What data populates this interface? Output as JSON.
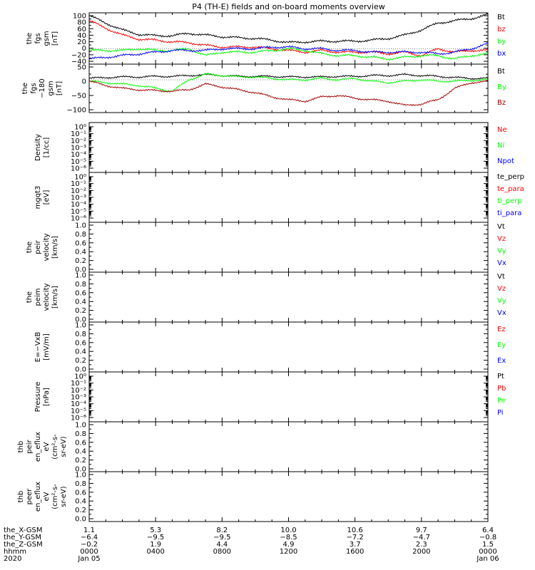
{
  "title": "P4 (TH-E) fields and on-board moments overview",
  "colors": {
    "black": "#000000",
    "red": "#ff0000",
    "green": "#00ff00",
    "blue": "#0000ff",
    "darkred": "#a00000"
  },
  "panels": [
    {
      "id": "fgs",
      "ylabel": [
        "the",
        "fgs",
        "gsm",
        "[nT]"
      ],
      "scale": "linear",
      "yticks": [
        "100",
        "80",
        "60",
        "40",
        "20",
        "0",
        "−20",
        "−40"
      ],
      "ylim": [
        -45,
        105
      ],
      "legend": [
        {
          "text": "Bt",
          "color": "black"
        },
        {
          "text": "bz",
          "color": "red"
        },
        {
          "text": "by",
          "color": "green"
        },
        {
          "text": "bx",
          "color": "blue"
        }
      ]
    },
    {
      "id": "fgs-dsl",
      "ylabel": [
        "the",
        "fgs",
        "−180",
        "gsm",
        "[nT]"
      ],
      "scale": "linear",
      "yticks": [
        "50",
        "0",
        "−50",
        "−100"
      ],
      "ylim": [
        -115,
        55
      ],
      "legend": [
        {
          "text": "Bt",
          "color": "black"
        },
        {
          "text": "By",
          "color": "green"
        },
        {
          "text": "Bz",
          "color": "darkred"
        }
      ]
    },
    {
      "id": "density",
      "ylabel": [
        "Density",
        "[1/cc]"
      ],
      "scale": "log",
      "yticks": [
        "10⁰",
        "10⁻¹",
        "10⁻²",
        "10⁻³",
        "10⁻⁴",
        "10⁻⁵",
        "10⁻⁶"
      ],
      "legend": [
        {
          "text": "Ne",
          "color": "red"
        },
        {
          "text": "Ni",
          "color": "green"
        },
        {
          "text": "Npot",
          "color": "blue"
        }
      ]
    },
    {
      "id": "temp",
      "ylabel": [
        "mgqt3",
        "[eV]"
      ],
      "scale": "log",
      "yticks": [
        "10⁰",
        "10⁻¹",
        "10⁻²",
        "10⁻³",
        "10⁻⁴",
        "10⁻⁵",
        "10⁻⁶"
      ],
      "legend": [
        {
          "text": "te_perp",
          "color": "black"
        },
        {
          "text": "te_para",
          "color": "red"
        },
        {
          "text": "ti_perp",
          "color": "green"
        },
        {
          "text": "ti_para",
          "color": "blue"
        }
      ]
    },
    {
      "id": "peir",
      "ylabel": [
        "the",
        "peir",
        "velocity",
        "[km/s]"
      ],
      "scale": "linear",
      "yticks": [
        "1.0",
        "0.8",
        "0.6",
        "0.4",
        "0.2",
        "0.0"
      ],
      "legend": [
        {
          "text": "Vt",
          "color": "black"
        },
        {
          "text": "Vz",
          "color": "red"
        },
        {
          "text": "Vy",
          "color": "green"
        },
        {
          "text": "Vx",
          "color": "blue"
        }
      ]
    },
    {
      "id": "peim",
      "ylabel": [
        "the",
        "peim",
        "velocity",
        "[km/s]"
      ],
      "scale": "linear",
      "yticks": [
        "1.0",
        "0.8",
        "0.6",
        "0.4",
        "0.2",
        "0.0"
      ],
      "legend": [
        {
          "text": "Vt",
          "color": "black"
        },
        {
          "text": "Vz",
          "color": "red"
        },
        {
          "text": "Vy",
          "color": "green"
        },
        {
          "text": "Vx",
          "color": "blue"
        }
      ]
    },
    {
      "id": "efield",
      "ylabel": [
        "E=−VxB",
        "[mV/m]"
      ],
      "scale": "linear",
      "yticks": [
        "1.0",
        "0.8",
        "0.6",
        "0.4",
        "0.2",
        "0.0"
      ],
      "legend": [
        {
          "text": "Ez",
          "color": "red"
        },
        {
          "text": "Ey",
          "color": "green"
        },
        {
          "text": "Ex",
          "color": "blue"
        }
      ]
    },
    {
      "id": "pressure",
      "ylabel": [
        "Pressure",
        "[nPa]"
      ],
      "scale": "log",
      "yticks": [
        "10⁰",
        "10⁻¹",
        "10⁻²",
        "10⁻³",
        "10⁻⁴",
        "10⁻⁵",
        "10⁻⁶"
      ],
      "legend": [
        {
          "text": "Pt",
          "color": "black"
        },
        {
          "text": "Pb",
          "color": "red"
        },
        {
          "text": "Pe",
          "color": "green"
        },
        {
          "text": "Pi",
          "color": "blue"
        }
      ]
    },
    {
      "id": "peef",
      "ylabel": [
        "thb",
        "peir",
        "en_eflux",
        "eV",
        "(cm²-s-",
        "sr-eV)"
      ],
      "scale": "linear",
      "yticks": [
        "1.0",
        "0.8",
        "0.6",
        "0.4",
        "0.2",
        "0.0"
      ],
      "legend": []
    },
    {
      "id": "peif",
      "ylabel": [
        "thb",
        "peer",
        "en_eflux",
        "eV",
        "(cm²-s-",
        "sr-eV)"
      ],
      "scale": "linear",
      "yticks": [
        "1.0",
        "0.8",
        "0.6",
        "0.4",
        "0.2",
        "0.0"
      ],
      "legend": []
    }
  ],
  "xaxis": {
    "rows": [
      {
        "label": "the_X-GSM",
        "values": [
          "1.1",
          "5.3",
          "8.2",
          "10.0",
          "10.6",
          "9.7",
          "6.4"
        ]
      },
      {
        "label": "the_Y-GSM",
        "values": [
          "−6.4",
          "−9.5",
          "−9.5",
          "−8.5",
          "−7.2",
          "−4.7",
          "−0.8"
        ]
      },
      {
        "label": "the_Z-GSM",
        "values": [
          "−0.2",
          "1.9",
          "4.4",
          "4.9",
          "3.7",
          "2.3",
          "1.5"
        ]
      },
      {
        "label": "hhmm",
        "values": [
          "0000",
          "0400",
          "0800",
          "1200",
          "1600",
          "2000",
          "0000"
        ]
      }
    ],
    "year": "2020",
    "dates": [
      {
        "at": 0,
        "text": "Jan 05"
      },
      {
        "at": 6,
        "text": "Jan 06"
      }
    ]
  },
  "chart_data": [
    {
      "type": "line",
      "title": "P4 (TH-E) fields and on-board moments overview",
      "xlabel": "hhmm",
      "ylabel": "the fgs gsm [nT]",
      "ylim": [
        -45,
        105
      ],
      "x": [
        0,
        1,
        2,
        3,
        4,
        5,
        6,
        7,
        8,
        9,
        10,
        11,
        12,
        13,
        14,
        15,
        16,
        17,
        18,
        19,
        20,
        21,
        22,
        23,
        24
      ],
      "series": [
        {
          "name": "Bt",
          "color": "black",
          "values": [
            97,
            75,
            55,
            42,
            38,
            38,
            45,
            40,
            35,
            32,
            30,
            25,
            18,
            20,
            22,
            22,
            22,
            25,
            30,
            40,
            55,
            75,
            82,
            88,
            100
          ]
        },
        {
          "name": "bz",
          "color": "red",
          "values": [
            82,
            60,
            40,
            28,
            25,
            20,
            18,
            10,
            5,
            5,
            5,
            0,
            -5,
            -10,
            -5,
            -10,
            -10,
            -10,
            -15,
            -10,
            -20,
            0,
            -10,
            -5,
            -5
          ]
        },
        {
          "name": "by",
          "color": "green",
          "values": [
            -5,
            -5,
            -5,
            0,
            -5,
            -5,
            0,
            -20,
            -10,
            -10,
            -10,
            -5,
            0,
            -5,
            -15,
            -20,
            -20,
            -25,
            -30,
            -25,
            -20,
            -20,
            -30,
            -20,
            -15
          ]
        },
        {
          "name": "bx",
          "color": "blue",
          "values": [
            -30,
            -25,
            -20,
            -15,
            -10,
            -5,
            -5,
            -5,
            0,
            0,
            0,
            5,
            5,
            0,
            0,
            -5,
            -5,
            -10,
            -10,
            -10,
            -10,
            -15,
            -10,
            0,
            15
          ]
        }
      ]
    },
    {
      "type": "line",
      "xlabel": "hhmm",
      "ylabel": "the fgs −180 gsm [nT]",
      "ylim": [
        -115,
        55
      ],
      "x": [
        0,
        1,
        2,
        3,
        4,
        5,
        6,
        7,
        8,
        9,
        10,
        11,
        12,
        13,
        14,
        15,
        16,
        17,
        18,
        19,
        20,
        21,
        22,
        23,
        24
      ],
      "series": [
        {
          "name": "Bt",
          "color": "black",
          "values": [
            5,
            8,
            10,
            10,
            12,
            12,
            15,
            18,
            15,
            12,
            12,
            12,
            10,
            10,
            10,
            12,
            12,
            15,
            15,
            18,
            15,
            12,
            8,
            5,
            5
          ]
        },
        {
          "name": "By",
          "color": "green",
          "values": [
            -5,
            -10,
            -15,
            -20,
            -30,
            -40,
            0,
            20,
            15,
            10,
            10,
            5,
            0,
            0,
            5,
            0,
            5,
            -5,
            -10,
            -5,
            0,
            -5,
            -5,
            -2,
            0
          ]
        },
        {
          "name": "Bz",
          "color": "darkred",
          "values": [
            -5,
            -20,
            -30,
            -35,
            -38,
            -40,
            -35,
            -15,
            -25,
            -35,
            -45,
            -60,
            -70,
            -75,
            -60,
            -55,
            -65,
            -70,
            -75,
            -90,
            -85,
            -70,
            -30,
            -10,
            -5
          ]
        }
      ]
    }
  ]
}
